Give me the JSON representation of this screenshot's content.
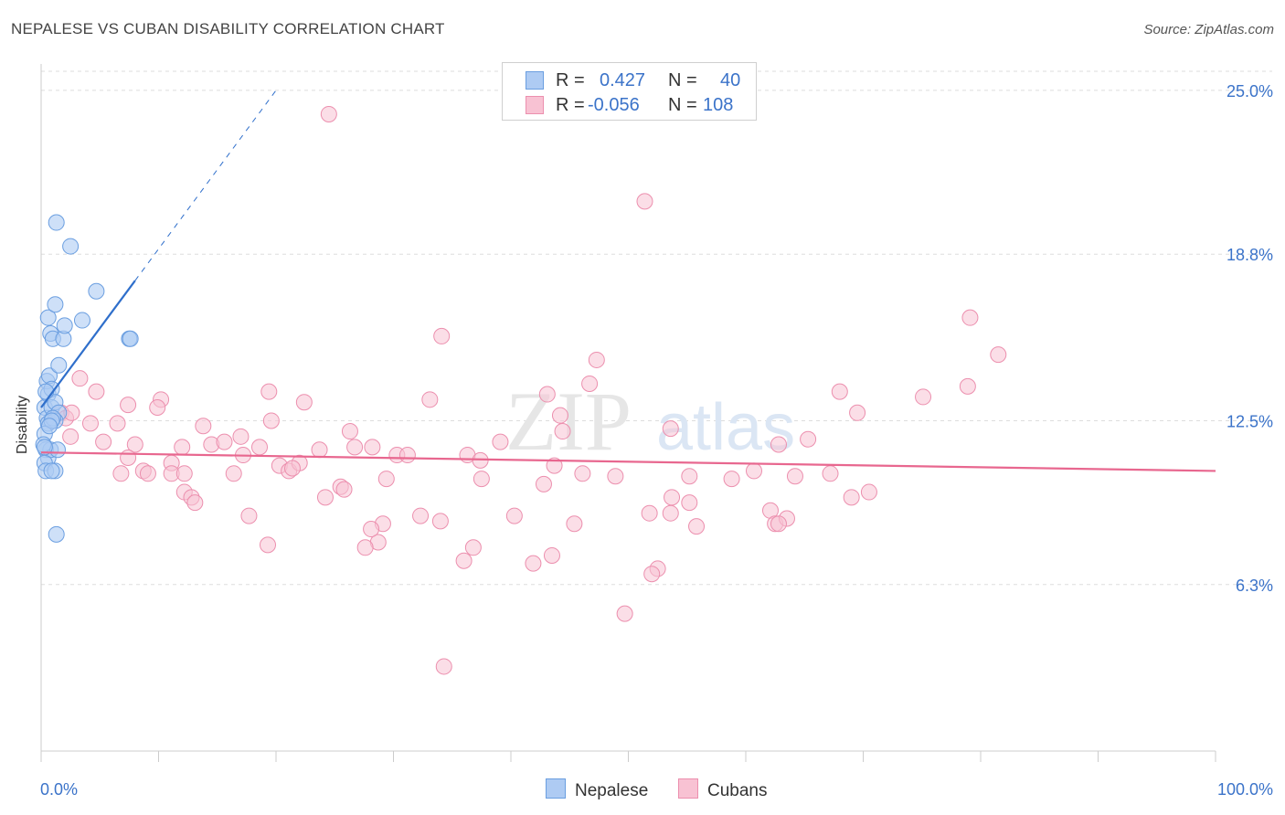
{
  "header": {
    "title": "NEPALESE VS CUBAN DISABILITY CORRELATION CHART",
    "source": "Source: ZipAtlas.com"
  },
  "legend": {
    "r_label": "R =",
    "n_label": "N =",
    "rows": [
      {
        "name": "Nepalese",
        "r": "0.427",
        "n": "40"
      },
      {
        "name": "Cubans",
        "r": "-0.056",
        "n": "108"
      }
    ]
  },
  "colors": {
    "nepalese_fill": "#aecbf3",
    "nepalese_stroke": "#6a9ee0",
    "nepalese_line": "#2f6fcb",
    "cubans_fill": "#f8c2d3",
    "cubans_stroke": "#ec8fae",
    "cubans_line": "#e8678f",
    "tick_label": "#3b73c9"
  },
  "watermark": {
    "zip": "ZIP",
    "atlas": "atlas"
  },
  "chart_data": {
    "type": "scatter",
    "title": "NEPALESE VS CUBAN DISABILITY CORRELATION CHART",
    "xlabel": "",
    "ylabel": "Disability",
    "xlim": [
      0,
      100
    ],
    "ylim": [
      0,
      26
    ],
    "x_tick_labels": [
      "0.0%",
      "100.0%"
    ],
    "y_ticks": [
      6.3,
      12.5,
      18.8,
      25.0
    ],
    "y_tick_labels": [
      "6.3%",
      "12.5%",
      "18.8%",
      "25.0%"
    ],
    "legend_position": "top-center",
    "series": [
      {
        "name": "Nepalese",
        "r": 0.427,
        "n": 40,
        "trend": {
          "x0": 0.0,
          "y0": 13.0,
          "x1": 8.0,
          "y1": 17.8,
          "dash_to_x": 20.0
        },
        "points": [
          [
            0.3,
            13.0
          ],
          [
            0.5,
            12.6
          ],
          [
            0.6,
            12.4
          ],
          [
            0.4,
            11.4
          ],
          [
            0.6,
            11.1
          ],
          [
            0.8,
            11.4
          ],
          [
            0.3,
            10.9
          ],
          [
            0.4,
            10.6
          ],
          [
            0.6,
            13.5
          ],
          [
            0.5,
            14.0
          ],
          [
            0.7,
            14.2
          ],
          [
            0.9,
            13.7
          ],
          [
            0.9,
            13.0
          ],
          [
            1.2,
            13.2
          ],
          [
            1.5,
            12.8
          ],
          [
            1.2,
            12.5
          ],
          [
            1.0,
            12.6
          ],
          [
            0.9,
            12.5
          ],
          [
            1.4,
            11.4
          ],
          [
            1.2,
            10.6
          ],
          [
            0.9,
            10.6
          ],
          [
            0.6,
            16.4
          ],
          [
            0.8,
            15.8
          ],
          [
            1.0,
            15.6
          ],
          [
            1.9,
            15.6
          ],
          [
            2.0,
            16.1
          ],
          [
            3.5,
            16.3
          ],
          [
            1.2,
            16.9
          ],
          [
            4.7,
            17.4
          ],
          [
            7.5,
            15.6
          ],
          [
            7.6,
            15.6
          ],
          [
            1.5,
            14.6
          ],
          [
            1.3,
            20.0
          ],
          [
            2.5,
            19.1
          ],
          [
            1.3,
            8.2
          ],
          [
            0.3,
            12.0
          ],
          [
            0.4,
            13.6
          ],
          [
            0.2,
            11.6
          ],
          [
            0.7,
            12.3
          ],
          [
            0.3,
            11.5
          ]
        ]
      },
      {
        "name": "Cubans",
        "r": -0.056,
        "n": 108,
        "trend": {
          "x0": 0.0,
          "y0": 11.3,
          "x1": 100.0,
          "y1": 10.6
        },
        "points": [
          [
            24.5,
            24.1
          ],
          [
            51.4,
            20.8
          ],
          [
            34.3,
            3.2
          ],
          [
            49.7,
            5.2
          ],
          [
            79.1,
            16.4
          ],
          [
            81.5,
            15.0
          ],
          [
            34.1,
            15.7
          ],
          [
            47.3,
            14.8
          ],
          [
            3.3,
            14.1
          ],
          [
            4.7,
            13.6
          ],
          [
            7.4,
            13.1
          ],
          [
            10.2,
            13.3
          ],
          [
            9.9,
            13.0
          ],
          [
            19.4,
            13.6
          ],
          [
            22.4,
            13.2
          ],
          [
            33.1,
            13.3
          ],
          [
            43.1,
            13.5
          ],
          [
            46.7,
            13.9
          ],
          [
            68.0,
            13.6
          ],
          [
            75.1,
            13.4
          ],
          [
            78.9,
            13.8
          ],
          [
            1.7,
            12.8
          ],
          [
            2.1,
            12.6
          ],
          [
            2.6,
            12.8
          ],
          [
            4.2,
            12.4
          ],
          [
            6.5,
            12.4
          ],
          [
            13.8,
            12.3
          ],
          [
            19.6,
            12.5
          ],
          [
            26.3,
            12.1
          ],
          [
            44.2,
            12.7
          ],
          [
            44.4,
            12.1
          ],
          [
            53.6,
            12.2
          ],
          [
            69.5,
            12.8
          ],
          [
            65.3,
            11.8
          ],
          [
            62.8,
            11.6
          ],
          [
            2.5,
            11.9
          ],
          [
            5.3,
            11.7
          ],
          [
            8.0,
            11.6
          ],
          [
            12.0,
            11.5
          ],
          [
            14.5,
            11.6
          ],
          [
            17.0,
            11.9
          ],
          [
            18.6,
            11.5
          ],
          [
            23.7,
            11.4
          ],
          [
            26.7,
            11.5
          ],
          [
            28.2,
            11.5
          ],
          [
            30.3,
            11.2
          ],
          [
            31.2,
            11.2
          ],
          [
            36.3,
            11.2
          ],
          [
            37.4,
            11.0
          ],
          [
            39.1,
            11.7
          ],
          [
            15.6,
            11.7
          ],
          [
            17.2,
            11.2
          ],
          [
            7.4,
            11.1
          ],
          [
            11.1,
            10.9
          ],
          [
            20.3,
            10.8
          ],
          [
            21.1,
            10.6
          ],
          [
            22.0,
            10.9
          ],
          [
            43.7,
            10.8
          ],
          [
            46.1,
            10.5
          ],
          [
            55.2,
            10.4
          ],
          [
            60.7,
            10.6
          ],
          [
            64.2,
            10.4
          ],
          [
            67.2,
            10.5
          ],
          [
            6.8,
            10.5
          ],
          [
            8.7,
            10.6
          ],
          [
            9.1,
            10.5
          ],
          [
            11.1,
            10.5
          ],
          [
            12.2,
            10.5
          ],
          [
            16.4,
            10.5
          ],
          [
            21.4,
            10.7
          ],
          [
            29.4,
            10.3
          ],
          [
            37.5,
            10.3
          ],
          [
            42.8,
            10.1
          ],
          [
            48.9,
            10.4
          ],
          [
            58.8,
            10.3
          ],
          [
            12.2,
            9.8
          ],
          [
            12.8,
            9.6
          ],
          [
            13.1,
            9.4
          ],
          [
            24.2,
            9.6
          ],
          [
            25.5,
            10.0
          ],
          [
            25.8,
            9.9
          ],
          [
            53.7,
            9.6
          ],
          [
            55.2,
            9.4
          ],
          [
            69.0,
            9.6
          ],
          [
            70.5,
            9.8
          ],
          [
            62.1,
            9.1
          ],
          [
            17.7,
            8.9
          ],
          [
            29.1,
            8.6
          ],
          [
            32.3,
            8.9
          ],
          [
            34.0,
            8.7
          ],
          [
            40.3,
            8.9
          ],
          [
            45.4,
            8.6
          ],
          [
            55.8,
            8.5
          ],
          [
            51.8,
            9.0
          ],
          [
            53.6,
            9.0
          ],
          [
            62.5,
            8.6
          ],
          [
            63.5,
            8.8
          ],
          [
            62.8,
            8.6
          ],
          [
            19.3,
            7.8
          ],
          [
            28.7,
            7.9
          ],
          [
            36.0,
            7.2
          ],
          [
            36.8,
            7.7
          ],
          [
            41.9,
            7.1
          ],
          [
            43.5,
            7.4
          ],
          [
            52.5,
            6.9
          ],
          [
            52.0,
            6.7
          ],
          [
            28.1,
            8.4
          ],
          [
            27.6,
            7.7
          ]
        ]
      }
    ]
  }
}
